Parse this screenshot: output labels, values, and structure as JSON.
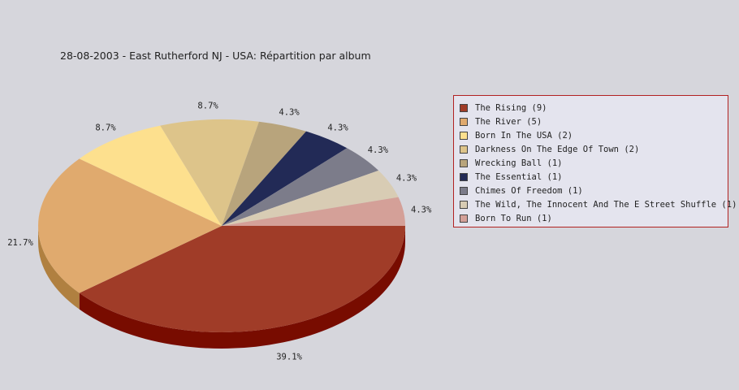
{
  "chart_data": {
    "type": "pie",
    "title": "28-08-2003 - East Rutherford NJ - USA:  Répartition par album",
    "categories": [
      "The Rising",
      "The River",
      "Born In The USA",
      "Darkness On The Edge Of Town",
      "Wrecking Ball",
      "The Essential",
      "Chimes Of Freedom",
      "The Wild, The Innocent And The E Street Shuffle",
      "Born To Run"
    ],
    "values": [
      9,
      5,
      2,
      2,
      1,
      1,
      1,
      1,
      1
    ],
    "percent_labels": [
      "39.1%",
      "21.7%",
      "8.7%",
      "8.7%",
      "4.3%",
      "4.3%",
      "4.3%",
      "4.3%",
      "4.3%"
    ],
    "legend_labels": [
      "The Rising (9)",
      "The River (5)",
      "Born In The USA (2)",
      "Darkness On The Edge Of Town (2)",
      "Wrecking Ball (1)",
      "The Essential (1)",
      "Chimes Of Freedom (1)",
      "The Wild, The Innocent And The E Street Shuffle (1)",
      "Born To Run (1)"
    ],
    "colors": [
      "#a03c28",
      "#e0aa6e",
      "#fde08e",
      "#ddc48a",
      "#b8a47c",
      "#222a56",
      "#7c7c8a",
      "#d8ccb4",
      "#d4a098"
    ],
    "side_colors": [
      "#780c00",
      "#b08040",
      "#c8aa60",
      "#b09860",
      "#8a7850",
      "#10163a",
      "#5a5a68",
      "#b0a488",
      "#a87068"
    ],
    "legend_placement": "right"
  }
}
